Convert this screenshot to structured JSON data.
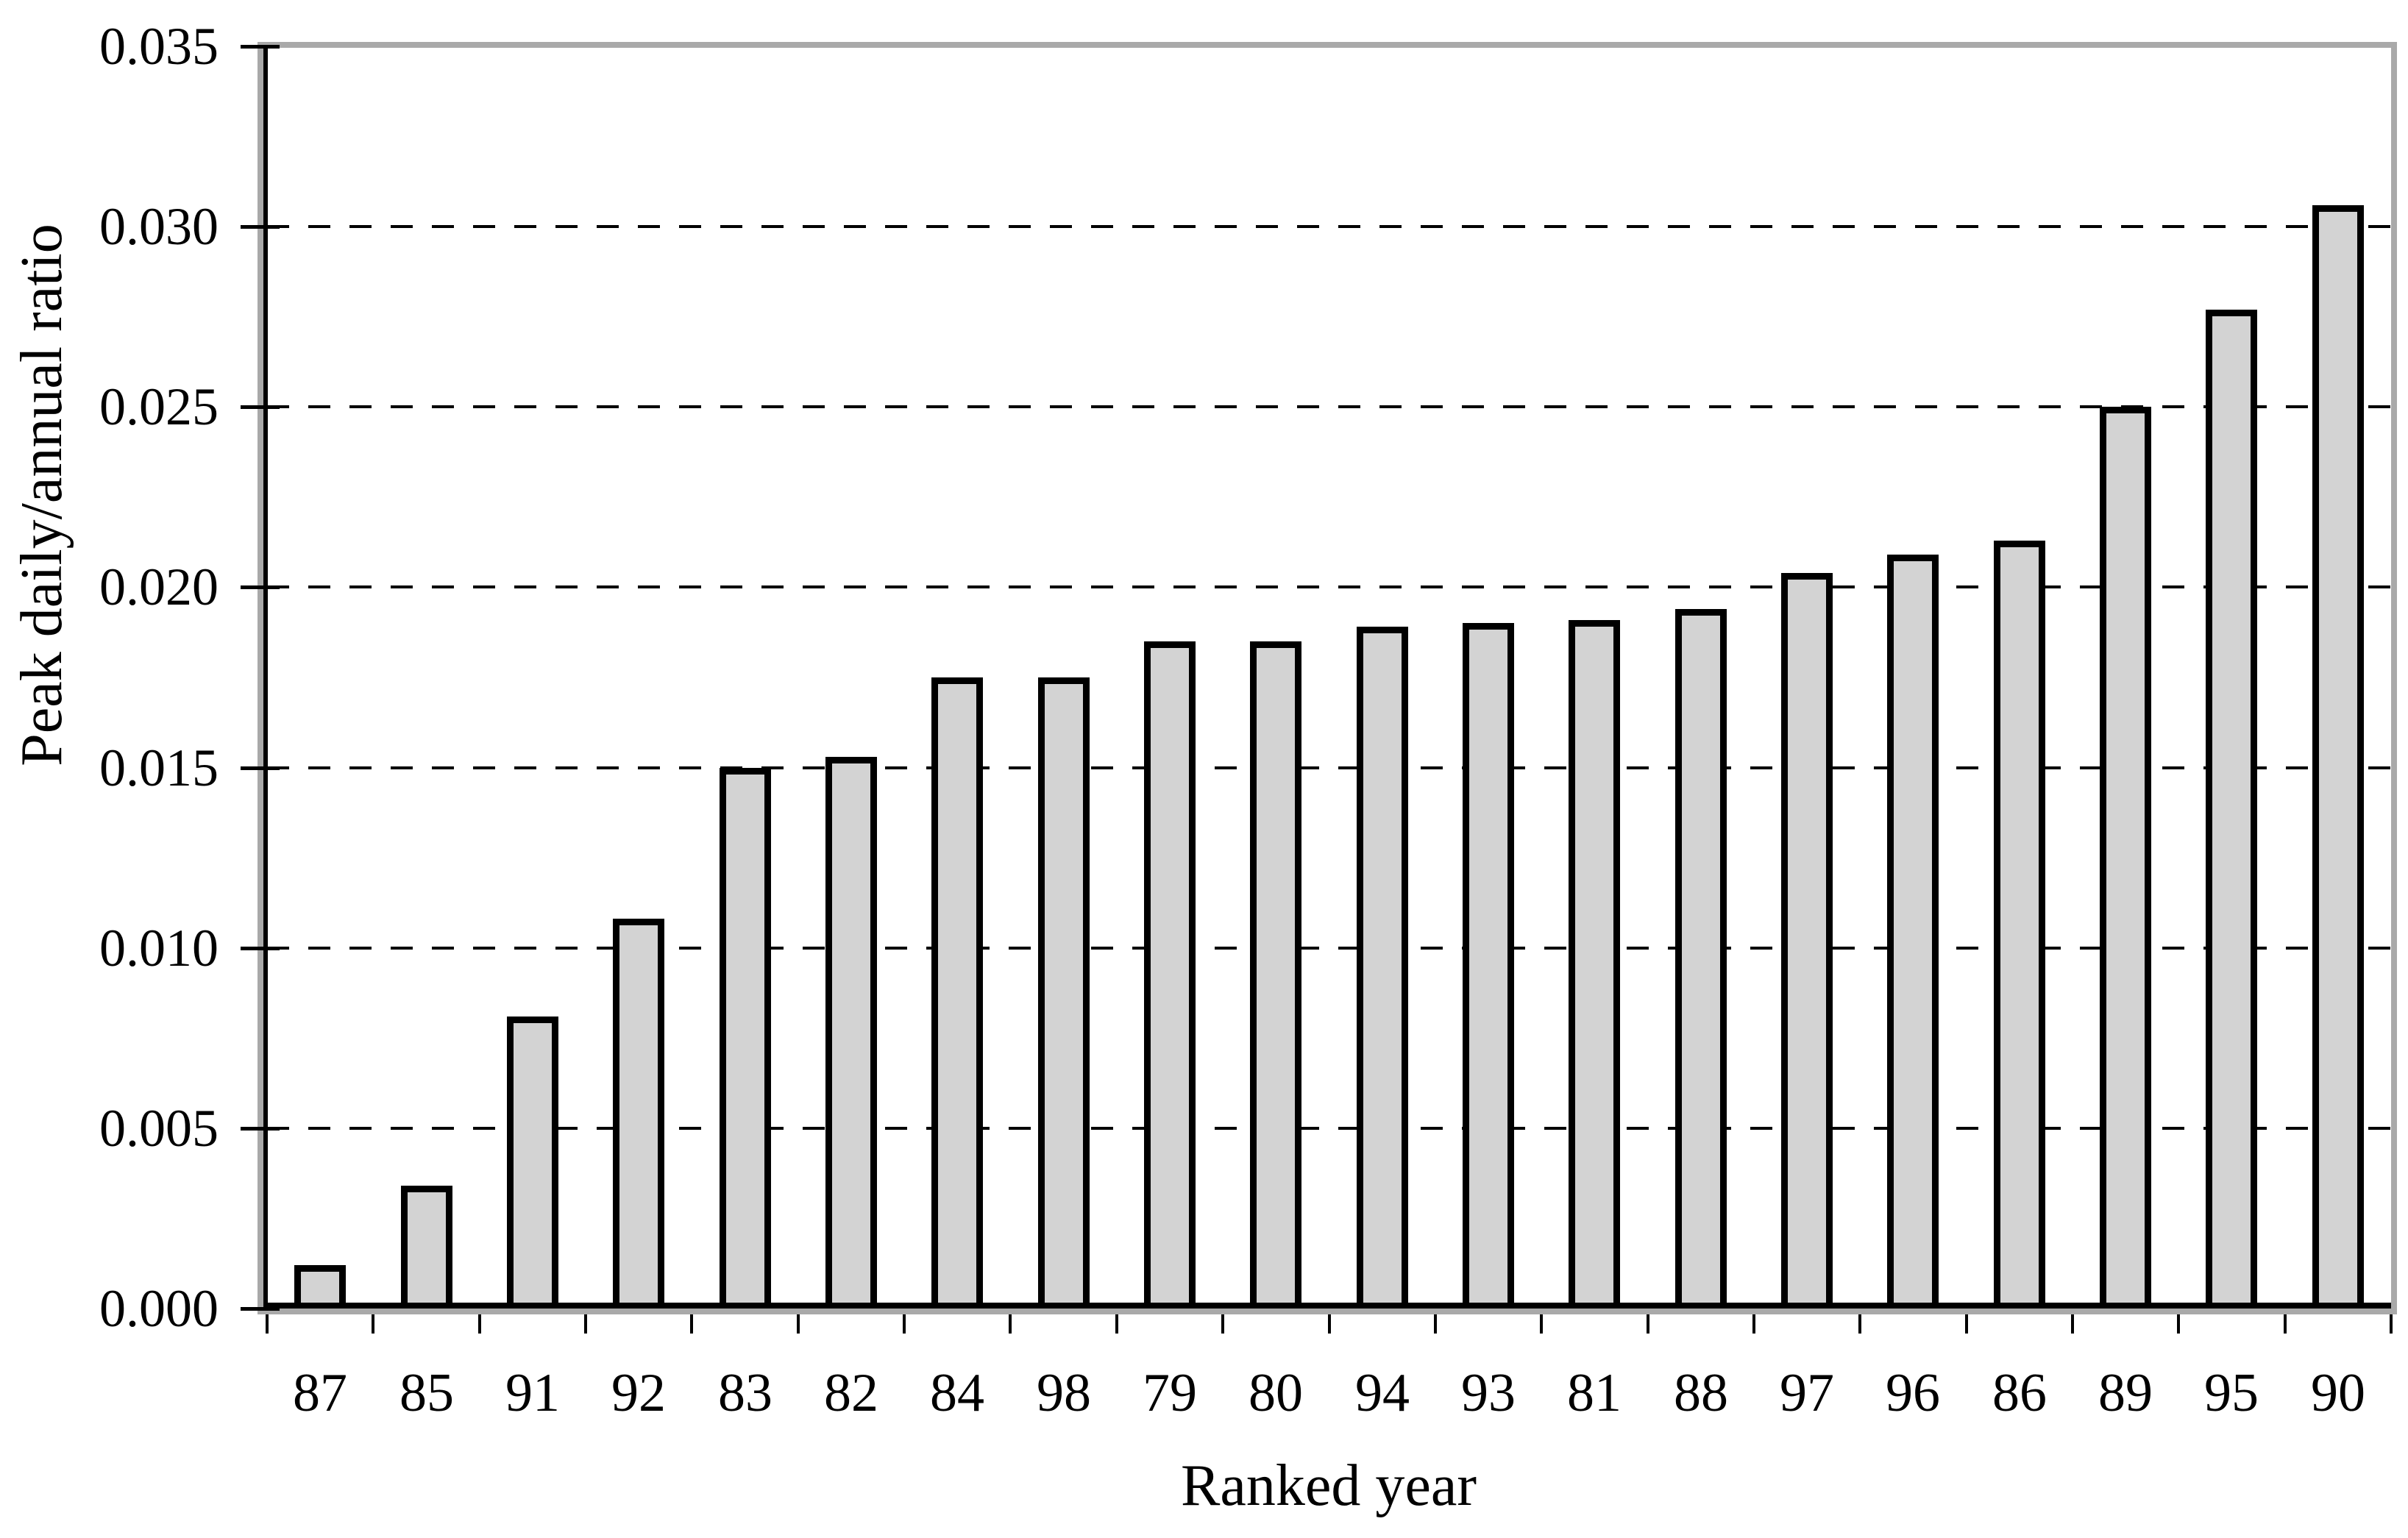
{
  "chart_data": {
    "type": "bar",
    "title": "",
    "xlabel": "Ranked year",
    "ylabel": "Peak daily/annual ratio",
    "categories": [
      "87",
      "85",
      "91",
      "92",
      "83",
      "82",
      "84",
      "98",
      "79",
      "80",
      "94",
      "93",
      "81",
      "88",
      "97",
      "96",
      "86",
      "89",
      "95",
      "90"
    ],
    "values": [
      0.0012,
      0.0034,
      0.0081,
      0.0108,
      0.015,
      0.0153,
      0.0175,
      0.0175,
      0.0185,
      0.0185,
      0.0189,
      0.019,
      0.0191,
      0.0194,
      0.0204,
      0.0209,
      0.0213,
      0.025,
      0.0277,
      0.0306
    ],
    "ylim": [
      0.0,
      0.035
    ],
    "ytick_step": 0.005,
    "ytick_labels": [
      "0.000",
      "0.005",
      "0.010",
      "0.015",
      "0.020",
      "0.025",
      "0.030",
      "0.035"
    ],
    "grid": "horizontal dashed gridlines at each 0.005, none at 0 and 0.035",
    "legend": "none",
    "colors": {
      "bar_fill": "#d3d3d3",
      "bar_border": "#000000",
      "plot_area_border": "#a9a9a9",
      "axis_line": "#000000",
      "gridline": "#000000",
      "background": "#ffffff",
      "text": "#000000"
    }
  }
}
